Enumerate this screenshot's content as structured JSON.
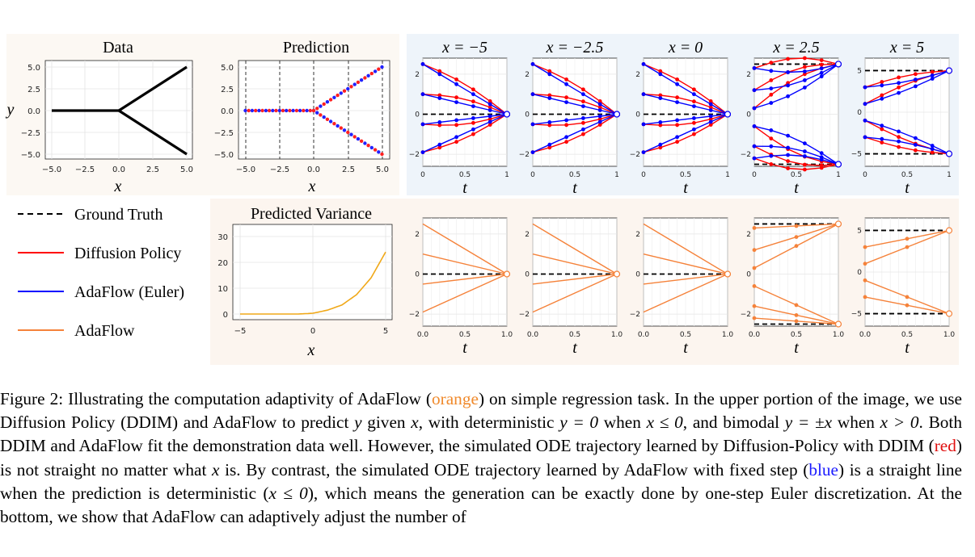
{
  "figure": {
    "top_panels": {
      "data_title": "Data",
      "prediction_title": "Prediction",
      "xlabel": "x",
      "ylabel": "y",
      "y_ticks": [
        "5.0",
        "2.5",
        "0.0",
        "−2.5",
        "−5.0"
      ],
      "x_ticks": [
        "−5.0",
        "−2.5",
        "0.0",
        "2.5",
        "5.0"
      ]
    },
    "ode_panels": {
      "titles": [
        "x = −5",
        "x = −2.5",
        "x = 0",
        "x = 2.5",
        "x = 5"
      ],
      "xlabel": "t",
      "top_x_ticks": [
        "0",
        "0.5",
        "1"
      ],
      "bottom_x_ticks": [
        "0.0",
        "0.5",
        "1.0"
      ],
      "y_ticks_small": [
        "2",
        "0",
        "−2"
      ],
      "y_ticks_large": [
        "5",
        "0",
        "−5"
      ]
    },
    "legend": {
      "items": [
        {
          "label": "Ground Truth",
          "color": "#000000",
          "style": "dashed"
        },
        {
          "label": "Diffusion Policy",
          "color": "#ff0000",
          "style": "solid"
        },
        {
          "label": "AdaFlow (Euler)",
          "color": "#0000ff",
          "style": "solid"
        },
        {
          "label": "AdaFlow",
          "color": "#f5823a",
          "style": "solid"
        }
      ]
    },
    "variance_panel": {
      "title": "Predicted Variance",
      "xlabel": "x",
      "y_ticks": [
        "30",
        "20",
        "10",
        "0"
      ],
      "x_ticks": [
        "−5",
        "0",
        "5"
      ],
      "curve_color": "#f0a818"
    }
  },
  "chart_data": [
    {
      "type": "line",
      "title": "Data",
      "xlabel": "x",
      "ylabel": "y",
      "xlim": [
        -5.5,
        5.5
      ],
      "ylim": [
        -5.5,
        5.5
      ],
      "series": [
        {
          "x": [
            -5,
            0,
            5
          ],
          "y": [
            0,
            0,
            5
          ]
        },
        {
          "x": [
            0,
            5
          ],
          "y": [
            0,
            -5
          ]
        }
      ]
    },
    {
      "type": "scatter",
      "title": "Prediction",
      "xlabel": "x",
      "xlim": [
        -5.5,
        5.5
      ],
      "ylim": [
        -5.5,
        5.5
      ],
      "vlines": [
        -5,
        -2.5,
        0,
        2.5,
        5
      ]
    },
    {
      "type": "line",
      "title": "Predicted Variance",
      "xlabel": "x",
      "xlim": [
        -5.5,
        5.5
      ],
      "ylim": [
        -1,
        33
      ],
      "series": [
        {
          "x": [
            -5,
            -3,
            -1,
            0,
            1,
            2,
            3,
            4,
            5
          ],
          "y": [
            0,
            0,
            0,
            0.3,
            1.5,
            3.5,
            7.5,
            14,
            24
          ]
        }
      ]
    }
  ],
  "caption": {
    "label": "Figure 2:",
    "s1": "Illustrating the computation adaptivity of AdaFlow (",
    "orange": "orange",
    "s2": ") on simple regression task. In the upper portion of the image, we use Diffusion Policy (DDIM) and AdaFlow to predict",
    "y": "y",
    "s3": "given",
    "x": "x",
    "s4": ", with deterministic",
    "eq1": "y = 0",
    "s5": "when",
    "eq2": "x ≤ 0",
    "s6": ", and bimodal",
    "eq3": "y = ±x",
    "s7": "when",
    "eq4": "x > 0",
    "s8": ". Both DDIM and AdaFlow fit the demonstration data well. However, the simulated ODE trajectory learned by Diffusion-Policy with DDIM (",
    "red": "red",
    "s9": ") is not straight no matter what",
    "s10": "is. By contrast, the simulated ODE trajectory learned by AdaFlow with fixed step (",
    "blue": "blue",
    "s11": ") is a straight line when the prediction is deterministic (",
    "eq5": "x ≤ 0",
    "s12": "), which means the generation can be exactly done by one-step Euler discretization. At the bottom, we show that AdaFlow can adaptively adjust the number of"
  }
}
